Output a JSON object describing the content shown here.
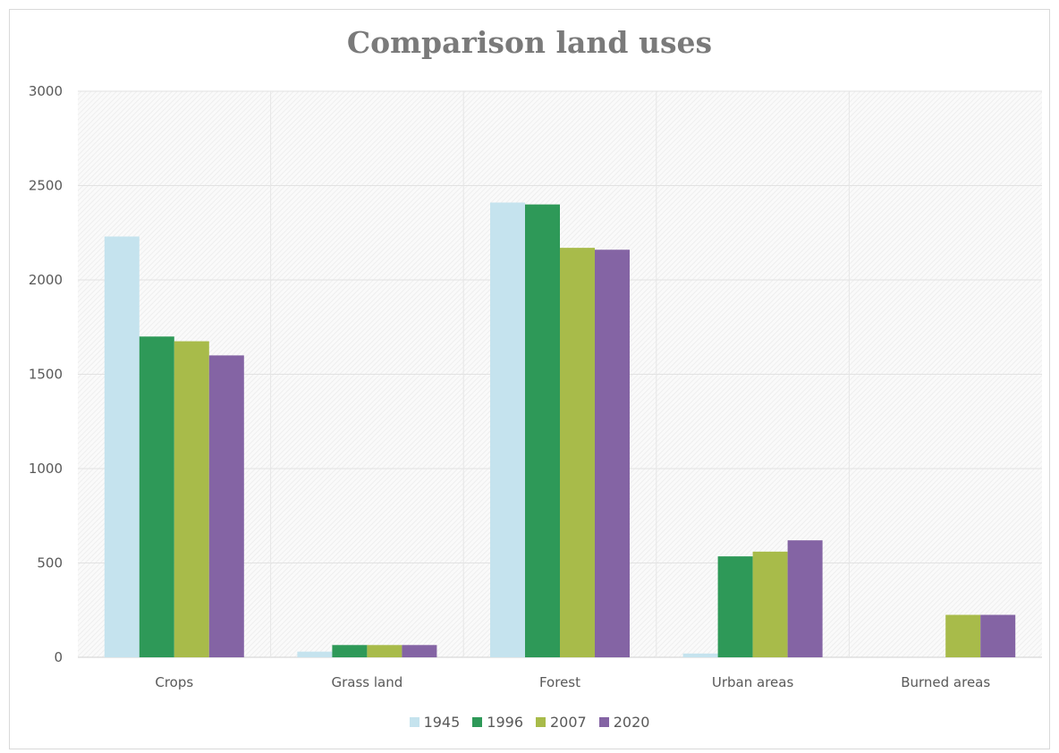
{
  "chart_data": {
    "type": "bar",
    "title": "Comparison land uses",
    "xlabel": "",
    "ylabel": "",
    "categories": [
      "Crops",
      "Grass land",
      "Forest",
      "Urban areas",
      "Burned areas"
    ],
    "series": [
      {
        "name": "1945",
        "color": "#c5e3ee",
        "values": [
          2230,
          30,
          2410,
          20,
          0
        ]
      },
      {
        "name": "1996",
        "color": "#2e9958",
        "values": [
          1700,
          65,
          2400,
          535,
          0
        ]
      },
      {
        "name": "2007",
        "color": "#a8bb4a",
        "values": [
          1675,
          65,
          2170,
          560,
          225
        ]
      },
      {
        "name": "2020",
        "color": "#8464a4",
        "values": [
          1600,
          65,
          2160,
          620,
          225
        ]
      }
    ],
    "ylim": [
      0,
      3000
    ],
    "yticks": [
      0,
      500,
      1000,
      1500,
      2000,
      2500,
      3000
    ],
    "grid": true,
    "legend": "bottom"
  }
}
